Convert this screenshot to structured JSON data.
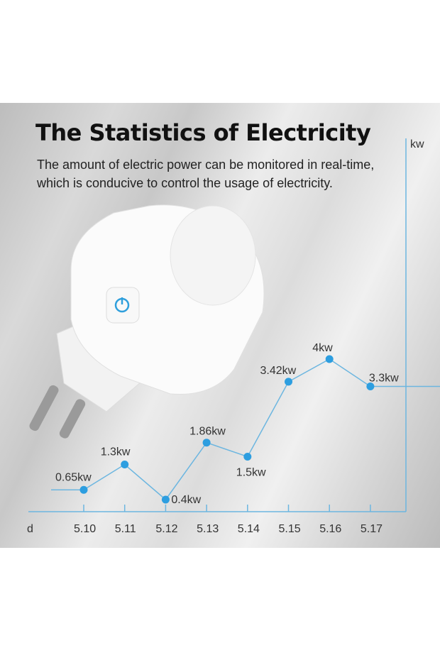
{
  "header": {
    "title": "The Statistics of Electricity",
    "subtitle_lines": [
      "The amount of electric power can be monitored in real-time,",
      "which is conducive to control the usage of electricity."
    ]
  },
  "product": {
    "name": "smart plug",
    "button_icon": "power-icon",
    "accent": "#2f9fdc"
  },
  "chart_data": {
    "type": "line",
    "xlabel": "d",
    "ylabel": "kw",
    "categories": [
      "5.10",
      "5.11",
      "5.12",
      "5.13",
      "5.14",
      "5.15",
      "5.16",
      "5.17"
    ],
    "values": [
      0.65,
      1.3,
      0.4,
      1.86,
      1.5,
      3.42,
      4,
      3.3
    ],
    "data_labels": [
      "0.65kw",
      "1.3kw",
      "0.4kw",
      "1.86kw",
      "1.5kw",
      "3.42kw",
      "4kw",
      "3.3kw"
    ],
    "grid": false,
    "line_color": "#6cb6e0",
    "marker_color": "#2d9ee0"
  }
}
